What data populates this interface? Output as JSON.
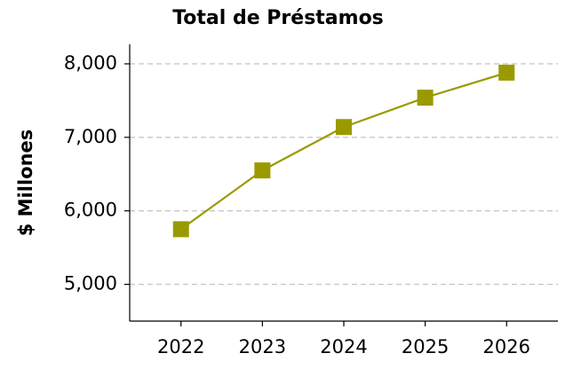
{
  "chart_data": {
    "type": "line",
    "title": "Total de Préstamos",
    "ylabel": "$ Millones",
    "x": [
      2022,
      2023,
      2024,
      2025,
      2026
    ],
    "series": [
      {
        "name": "Total de Préstamos",
        "color": "#9a9a00",
        "values": [
          5750,
          6550,
          7140,
          7540,
          7880
        ]
      }
    ],
    "xlim": [
      2021.37,
      2026.63
    ],
    "xticks": [
      2022,
      2023,
      2024,
      2025,
      2026
    ],
    "ylim": [
      4500,
      8265
    ],
    "yticks": [
      {
        "value": 5000,
        "label": "5,000"
      },
      {
        "value": 6000,
        "label": "6,000"
      },
      {
        "value": 7000,
        "label": "7,000"
      },
      {
        "value": 8000,
        "label": "8,000"
      }
    ],
    "grid": true
  }
}
